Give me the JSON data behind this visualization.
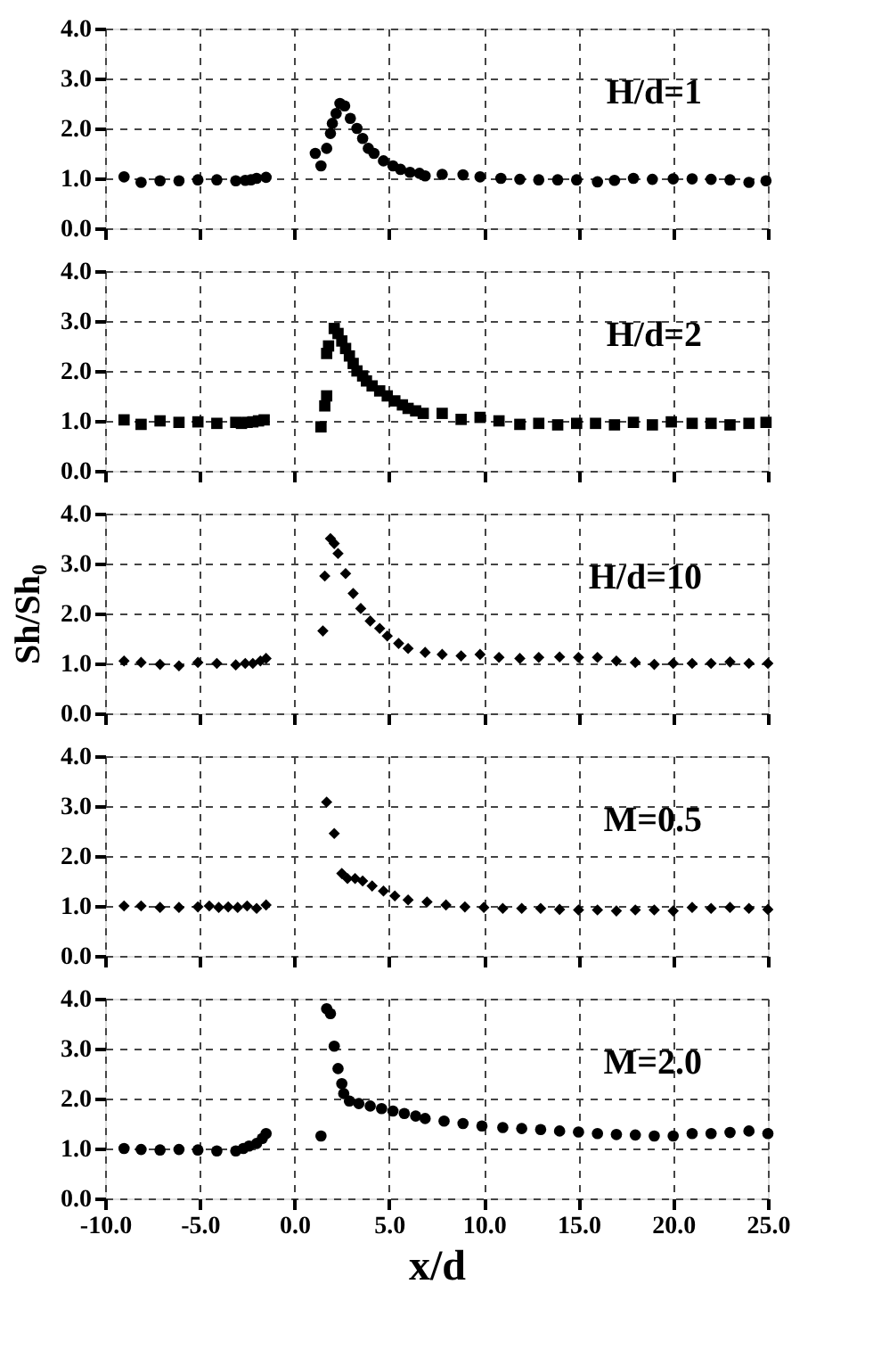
{
  "chart_data": [
    {
      "type": "scatter",
      "annotations": [
        "H/d=1"
      ],
      "xlim": [
        -10,
        25
      ],
      "ylim": [
        0,
        4
      ],
      "xticks": [
        {
          "value": -10,
          "label": null
        },
        {
          "value": -5,
          "label": null
        },
        {
          "value": 0,
          "label": null
        },
        {
          "value": 5,
          "label": null
        },
        {
          "value": 10,
          "label": null
        },
        {
          "value": 15,
          "label": null
        },
        {
          "value": 20,
          "label": null
        },
        {
          "value": 25,
          "label": null
        }
      ],
      "yticks": [
        {
          "value": 0,
          "label": "0.0"
        },
        {
          "value": 1,
          "label": "1.0"
        },
        {
          "value": 2,
          "label": "2.0"
        },
        {
          "value": 3,
          "label": "3.0"
        },
        {
          "value": 4,
          "label": "4.0"
        }
      ],
      "grid": true,
      "tick_labels": "y",
      "legend": false,
      "series": [
        {
          "color": "#000000",
          "marker": "circle",
          "x": [
            -9.0,
            -8.1,
            -7.1,
            -6.1,
            -5.1,
            -4.1,
            -3.1,
            -2.6,
            -2.3,
            -2.0,
            -1.5,
            1.1,
            1.4,
            1.7,
            1.9,
            2.0,
            2.2,
            2.4,
            2.65,
            2.95,
            3.3,
            3.6,
            3.9,
            4.2,
            4.7,
            5.2,
            5.6,
            6.1,
            6.6,
            6.9,
            7.8,
            8.9,
            9.8,
            10.9,
            11.9,
            12.9,
            13.9,
            14.9,
            16.0,
            16.9,
            17.9,
            18.9,
            20.0,
            21.0,
            22.0,
            23.0,
            24.0,
            24.9
          ],
          "values": [
            1.03,
            0.92,
            0.95,
            0.95,
            0.97,
            0.97,
            0.95,
            0.96,
            0.97,
            1.0,
            1.02,
            1.5,
            1.25,
            1.6,
            1.9,
            2.1,
            2.3,
            2.5,
            2.45,
            2.2,
            2.0,
            1.8,
            1.6,
            1.5,
            1.35,
            1.25,
            1.18,
            1.12,
            1.1,
            1.05,
            1.08,
            1.07,
            1.03,
            1.0,
            0.98,
            0.97,
            0.97,
            0.97,
            0.93,
            0.96,
            1.0,
            0.98,
            0.99,
            0.99,
            0.98,
            0.97,
            0.92,
            0.95
          ]
        }
      ]
    },
    {
      "type": "scatter",
      "annotations": [
        "H/d=2"
      ],
      "xlim": [
        -10,
        25
      ],
      "ylim": [
        0,
        4
      ],
      "xticks": [
        {
          "value": -10,
          "label": null
        },
        {
          "value": -5,
          "label": null
        },
        {
          "value": 0,
          "label": null
        },
        {
          "value": 5,
          "label": null
        },
        {
          "value": 10,
          "label": null
        },
        {
          "value": 15,
          "label": null
        },
        {
          "value": 20,
          "label": null
        },
        {
          "value": 25,
          "label": null
        }
      ],
      "yticks": [
        {
          "value": 0,
          "label": "0.0"
        },
        {
          "value": 1,
          "label": "1.0"
        },
        {
          "value": 2,
          "label": "2.0"
        },
        {
          "value": 3,
          "label": "3.0"
        },
        {
          "value": 4,
          "label": "4.0"
        }
      ],
      "grid": true,
      "tick_labels": "y",
      "legend": false,
      "series": [
        {
          "color": "#000000",
          "marker": "square",
          "x": [
            -9.0,
            -8.1,
            -7.1,
            -6.1,
            -5.1,
            -4.1,
            -3.1,
            -2.8,
            -2.5,
            -2.2,
            -1.9,
            -1.6,
            1.4,
            1.6,
            1.7,
            1.7,
            1.8,
            2.1,
            2.3,
            2.5,
            2.7,
            2.9,
            3.1,
            3.3,
            3.6,
            3.8,
            4.1,
            4.5,
            4.9,
            5.3,
            5.7,
            6.0,
            6.4,
            6.8,
            7.8,
            8.8,
            9.8,
            10.8,
            11.9,
            12.9,
            13.9,
            14.9,
            15.9,
            16.9,
            17.9,
            18.9,
            19.9,
            21.0,
            22.0,
            23.0,
            24.0,
            24.9
          ],
          "values": [
            1.02,
            0.93,
            1.0,
            0.97,
            0.98,
            0.95,
            0.97,
            0.95,
            0.97,
            0.98,
            1.0,
            1.02,
            0.88,
            1.3,
            1.5,
            2.35,
            2.5,
            2.85,
            2.75,
            2.6,
            2.45,
            2.3,
            2.15,
            2.0,
            1.9,
            1.8,
            1.7,
            1.6,
            1.5,
            1.4,
            1.32,
            1.25,
            1.2,
            1.15,
            1.15,
            1.03,
            1.07,
            1.0,
            0.93,
            0.95,
            0.92,
            0.95,
            0.95,
            0.92,
            0.97,
            0.92,
            0.98,
            0.95,
            0.95,
            0.92,
            0.95,
            0.97
          ]
        }
      ]
    },
    {
      "type": "scatter",
      "annotations": [
        "H/d=10"
      ],
      "ylabel": "Sh/Sh₀",
      "xlim": [
        -10,
        25
      ],
      "ylim": [
        0,
        4
      ],
      "xticks": [
        {
          "value": -10,
          "label": null
        },
        {
          "value": -5,
          "label": null
        },
        {
          "value": 0,
          "label": null
        },
        {
          "value": 5,
          "label": null
        },
        {
          "value": 10,
          "label": null
        },
        {
          "value": 15,
          "label": null
        },
        {
          "value": 20,
          "label": null
        },
        {
          "value": 25,
          "label": null
        }
      ],
      "yticks": [
        {
          "value": 0,
          "label": "0.0"
        },
        {
          "value": 1,
          "label": "1.0"
        },
        {
          "value": 2,
          "label": "2.0"
        },
        {
          "value": 3,
          "label": "3.0"
        },
        {
          "value": 4,
          "label": "4.0"
        }
      ],
      "grid": true,
      "tick_labels": "y",
      "legend": false,
      "series": [
        {
          "color": "#000000",
          "marker": "diamond",
          "x": [
            -9.0,
            -8.1,
            -7.1,
            -6.1,
            -5.1,
            -4.1,
            -3.1,
            -2.6,
            -2.2,
            -1.8,
            -1.5,
            1.5,
            1.6,
            1.9,
            2.1,
            2.3,
            2.7,
            3.1,
            3.5,
            4.0,
            4.5,
            4.9,
            5.5,
            6.0,
            6.9,
            7.8,
            8.8,
            9.8,
            10.8,
            11.9,
            12.9,
            14.0,
            15.0,
            16.0,
            17.0,
            18.0,
            19.0,
            20.0,
            21.0,
            22.0,
            23.0,
            24.0,
            25.0
          ],
          "values": [
            1.05,
            1.02,
            0.98,
            0.95,
            1.02,
            1.0,
            0.97,
            1.0,
            1.0,
            1.05,
            1.1,
            1.65,
            2.75,
            3.5,
            3.4,
            3.2,
            2.8,
            2.4,
            2.1,
            1.85,
            1.7,
            1.55,
            1.4,
            1.3,
            1.22,
            1.18,
            1.15,
            1.18,
            1.12,
            1.1,
            1.12,
            1.13,
            1.12,
            1.12,
            1.05,
            1.02,
            0.98,
            1.0,
            1.0,
            1.0,
            1.03,
            1.0,
            1.0
          ]
        }
      ]
    },
    {
      "type": "scatter",
      "annotations": [
        "M=0.5"
      ],
      "xlim": [
        -10,
        25
      ],
      "ylim": [
        0,
        4
      ],
      "xticks": [
        {
          "value": -10,
          "label": null
        },
        {
          "value": -5,
          "label": null
        },
        {
          "value": 0,
          "label": null
        },
        {
          "value": 5,
          "label": null
        },
        {
          "value": 10,
          "label": null
        },
        {
          "value": 15,
          "label": null
        },
        {
          "value": 20,
          "label": null
        },
        {
          "value": 25,
          "label": null
        }
      ],
      "yticks": [
        {
          "value": 0,
          "label": "0.0"
        },
        {
          "value": 1,
          "label": "1.0"
        },
        {
          "value": 2,
          "label": "2.0"
        },
        {
          "value": 3,
          "label": "3.0"
        },
        {
          "value": 4,
          "label": "4.0"
        }
      ],
      "grid": true,
      "tick_labels": "y",
      "legend": false,
      "series": [
        {
          "color": "#000000",
          "marker": "diamond",
          "x": [
            -9.0,
            -8.1,
            -7.1,
            -6.1,
            -5.1,
            -4.5,
            -4.0,
            -3.5,
            -3.0,
            -2.5,
            -2.0,
            -1.5,
            1.7,
            2.1,
            2.5,
            2.8,
            3.2,
            3.6,
            4.1,
            4.7,
            5.3,
            6.0,
            7.0,
            8.0,
            9.0,
            10.0,
            11.0,
            12.0,
            13.0,
            14.0,
            15.0,
            16.0,
            17.0,
            18.0,
            19.0,
            20.0,
            21.0,
            22.0,
            23.0,
            24.0,
            25.0
          ],
          "values": [
            1.0,
            1.0,
            0.97,
            0.97,
            0.98,
            1.0,
            0.97,
            0.98,
            0.97,
            1.0,
            0.95,
            1.02,
            3.08,
            2.45,
            1.65,
            1.55,
            1.55,
            1.5,
            1.4,
            1.3,
            1.2,
            1.12,
            1.08,
            1.02,
            0.98,
            0.97,
            0.95,
            0.95,
            0.95,
            0.93,
            0.92,
            0.92,
            0.9,
            0.92,
            0.92,
            0.9,
            0.97,
            0.95,
            0.97,
            0.95,
            0.93
          ]
        }
      ]
    },
    {
      "type": "scatter",
      "annotations": [
        "M=2.0"
      ],
      "xlabel": "x/d",
      "xlim": [
        -10,
        25
      ],
      "ylim": [
        0,
        4
      ],
      "xticks": [
        {
          "value": -10,
          "label": "-10.0"
        },
        {
          "value": -5,
          "label": "-5.0"
        },
        {
          "value": 0,
          "label": "0.0"
        },
        {
          "value": 5,
          "label": "5.0"
        },
        {
          "value": 10,
          "label": "10.0"
        },
        {
          "value": 15,
          "label": "15.0"
        },
        {
          "value": 20,
          "label": "20.0"
        },
        {
          "value": 25,
          "label": "25.0"
        }
      ],
      "yticks": [
        {
          "value": 0,
          "label": "0.0"
        },
        {
          "value": 1,
          "label": "1.0"
        },
        {
          "value": 2,
          "label": "2.0"
        },
        {
          "value": 3,
          "label": "3.0"
        },
        {
          "value": 4,
          "label": "4.0"
        }
      ],
      "grid": true,
      "legend": false,
      "series": [
        {
          "color": "#000000",
          "marker": "circle",
          "x": [
            -9.0,
            -8.1,
            -7.1,
            -6.1,
            -5.1,
            -4.1,
            -3.1,
            -2.7,
            -2.4,
            -2.0,
            -1.7,
            -1.5,
            1.4,
            1.7,
            1.9,
            2.1,
            2.3,
            2.5,
            2.6,
            2.9,
            3.4,
            4.0,
            4.6,
            5.2,
            5.8,
            6.4,
            6.9,
            7.9,
            8.9,
            9.9,
            11.0,
            12.0,
            13.0,
            14.0,
            15.0,
            16.0,
            17.0,
            18.0,
            19.0,
            20.0,
            21.0,
            22.0,
            23.0,
            24.0,
            25.0
          ],
          "values": [
            1.0,
            0.98,
            0.97,
            0.98,
            0.97,
            0.95,
            0.95,
            1.0,
            1.05,
            1.1,
            1.2,
            1.3,
            1.25,
            3.8,
            3.7,
            3.05,
            2.6,
            2.3,
            2.1,
            1.95,
            1.9,
            1.85,
            1.8,
            1.75,
            1.7,
            1.65,
            1.6,
            1.55,
            1.5,
            1.45,
            1.42,
            1.4,
            1.38,
            1.35,
            1.33,
            1.3,
            1.28,
            1.27,
            1.25,
            1.25,
            1.3,
            1.3,
            1.32,
            1.35,
            1.3
          ]
        }
      ]
    }
  ]
}
